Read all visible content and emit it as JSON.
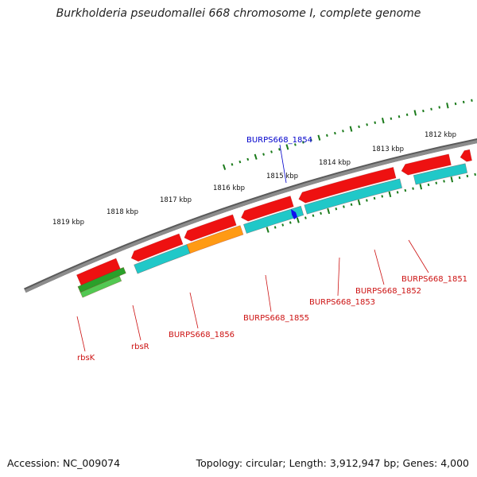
{
  "title": "Burkholderia pseudomallei 668 chromosome I, complete genome",
  "footer": {
    "accession": "Accession: NC_009074",
    "summary": "Topology: circular; Length: 3,912,947 bp; Genes: 4,000"
  },
  "ticks": [
    "1812 kbp",
    "1813 kbp",
    "1814 kbp",
    "1815 kbp",
    "1816 kbp",
    "1817 kbp",
    "1818 kbp",
    "1819 kbp"
  ],
  "gene_labels": [
    {
      "text": "BURPS668_1854",
      "highlight": true
    },
    {
      "text": "BURPS668_1851",
      "highlight": false
    },
    {
      "text": "BURPS668_1852",
      "highlight": false
    },
    {
      "text": "BURPS668_1853",
      "highlight": false
    },
    {
      "text": "BURPS668_1855",
      "highlight": false
    },
    {
      "text": "BURPS668_1856",
      "highlight": false
    },
    {
      "text": "rbsR",
      "highlight": false
    },
    {
      "text": "rbsK",
      "highlight": false
    }
  ],
  "colors": {
    "backbone": "#8c8c8c",
    "gene": "#ee1111",
    "cds": "#20c8c8",
    "rbsR": "#ff9a14",
    "other": "#4a3f96",
    "rna": "#2aa02a",
    "tick": "#1a7a1a",
    "label": "#cc1111",
    "highlight": "#0000cc"
  }
}
